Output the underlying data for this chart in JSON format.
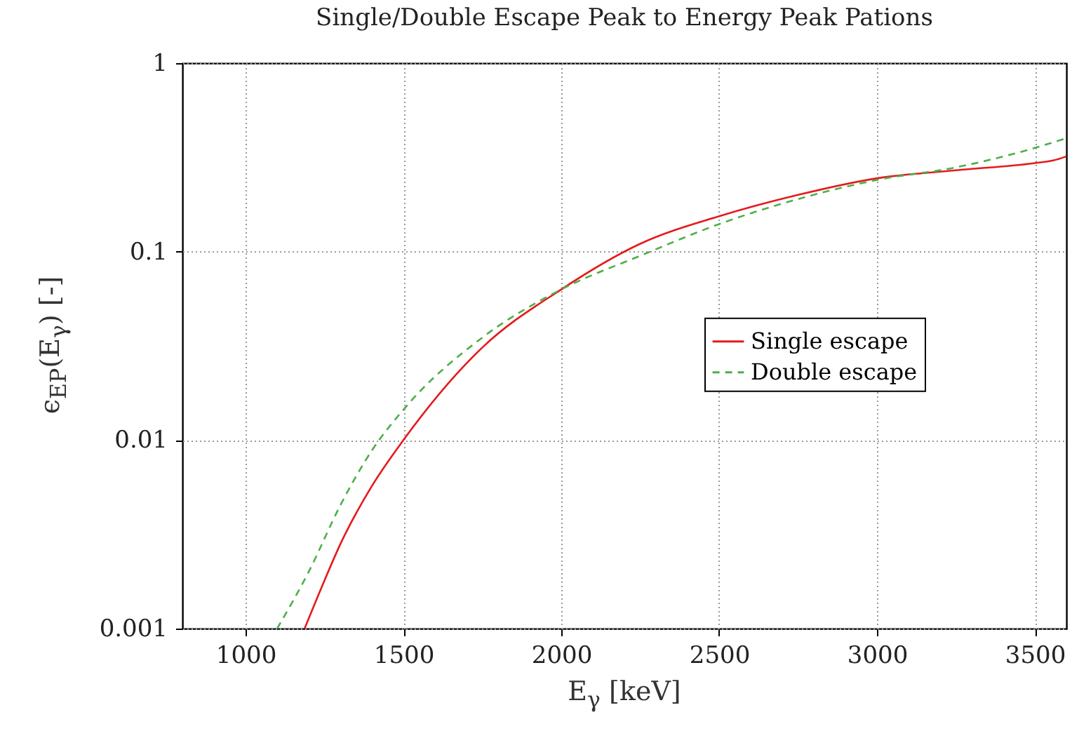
{
  "chart_data": {
    "type": "line",
    "title": "Single/Double Escape Peak to Energy Peak Pations",
    "xlabel": "E$_{γ}$ [keV]",
    "ylabel": "ϵ$_{EP}$(E$_{γ}$) [-]",
    "log": "y",
    "grid": true,
    "legend": "right",
    "xlim": [
      800,
      3600
    ],
    "xticks": [
      1000,
      1500,
      2000,
      2500,
      3000,
      3500
    ],
    "ylim": [
      0.001,
      1
    ],
    "yticks": [
      0.001,
      0.01,
      0.1,
      1
    ],
    "series": [
      {
        "name": "Single escape",
        "color": "#e41a1c",
        "line_style": "solid",
        "x": [
          1187,
          1250,
          1300,
          1400,
          1500,
          1750,
          2000,
          2250,
          2500,
          2750,
          3000,
          3250,
          3500,
          3560,
          3600
        ],
        "values": [
          0.001,
          0.0018,
          0.0028,
          0.0057,
          0.01,
          0.031,
          0.063,
          0.11,
          0.154,
          0.2,
          0.245,
          0.27,
          0.295,
          0.305,
          0.32
        ]
      },
      {
        "name": "Double escape",
        "color": "#4daf4a",
        "line_style": "dashed",
        "x": [
          1100,
          1200,
          1300,
          1400,
          1500,
          1750,
          2000,
          2250,
          2500,
          2750,
          3000,
          3250,
          3500,
          3600
        ],
        "values": [
          0.001,
          0.002,
          0.0045,
          0.0088,
          0.0145,
          0.035,
          0.063,
          0.095,
          0.14,
          0.19,
          0.24,
          0.28,
          0.355,
          0.4
        ]
      }
    ]
  }
}
